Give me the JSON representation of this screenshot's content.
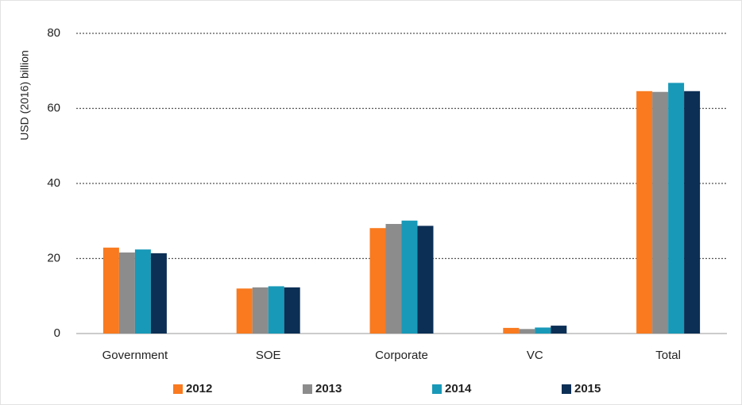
{
  "chart_data": {
    "type": "bar",
    "y_label": "USD (2016) billion",
    "categories": [
      "Government",
      "SOE",
      "Corporate",
      "VC",
      "Total"
    ],
    "series": [
      {
        "name": "2012",
        "color": "#f97a1f",
        "values": [
          22.9,
          12.0,
          28.1,
          1.5,
          64.6
        ]
      },
      {
        "name": "2013",
        "color": "#8c8c8c",
        "values": [
          21.6,
          12.3,
          29.2,
          1.2,
          64.4
        ]
      },
      {
        "name": "2014",
        "color": "#1899b8",
        "values": [
          22.4,
          12.6,
          30.1,
          1.6,
          66.8
        ]
      },
      {
        "name": "2015",
        "color": "#0c2f55",
        "values": [
          21.4,
          12.3,
          28.7,
          2.1,
          64.6
        ]
      }
    ],
    "ylim": [
      0,
      80
    ],
    "yticks": [
      0,
      20,
      40,
      60,
      80
    ],
    "grid": true,
    "legend": "bottom"
  }
}
